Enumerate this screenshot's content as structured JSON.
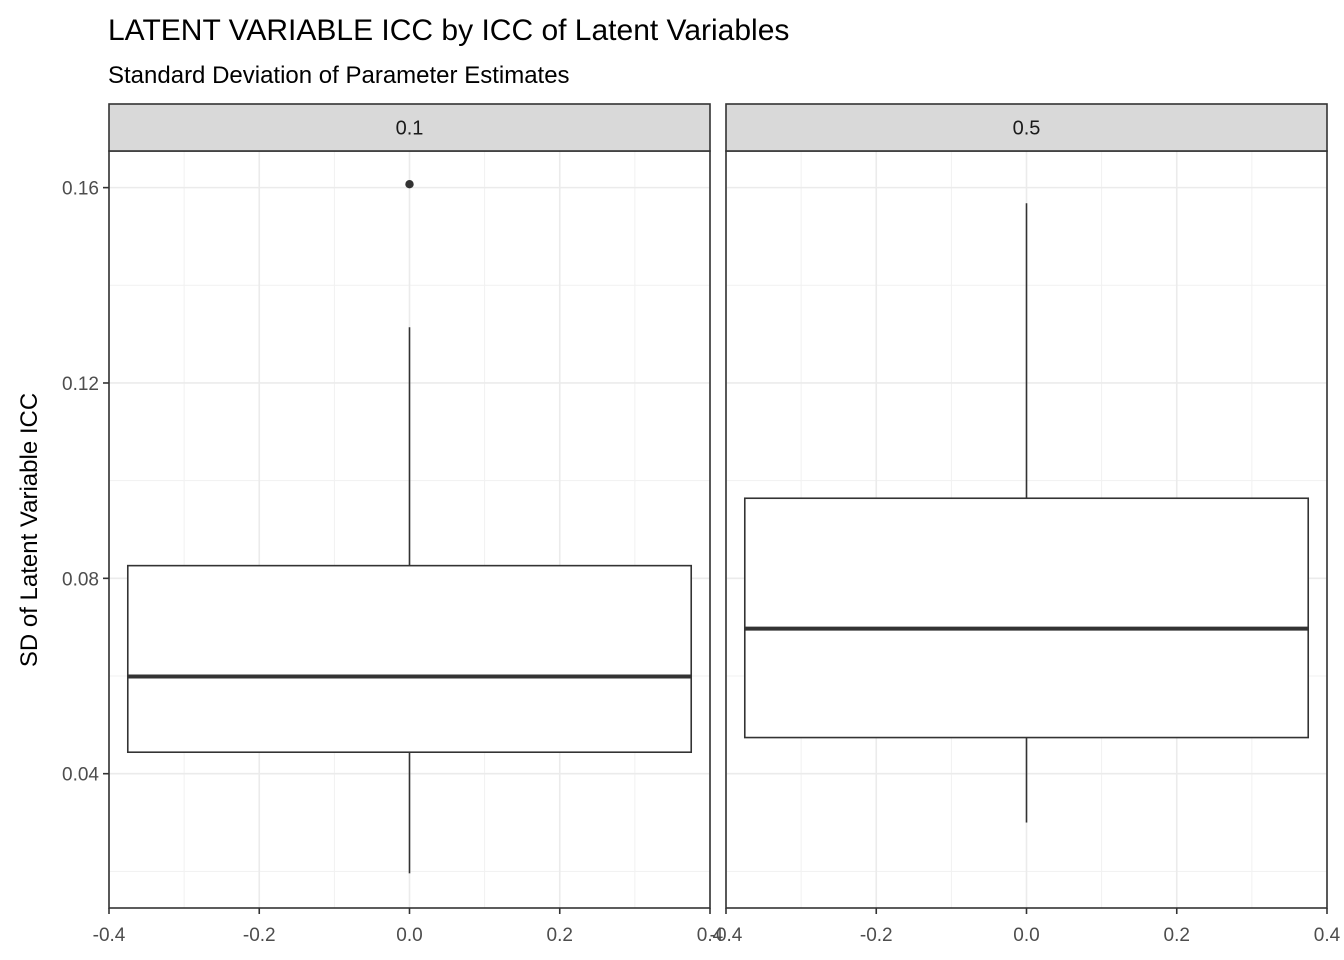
{
  "chart_data": {
    "type": "boxplot",
    "title": "LATENT VARIABLE ICC by ICC of Latent Variables",
    "subtitle": "Standard Deviation of Parameter Estimates",
    "xlabel": "",
    "ylabel": "SD of Latent Variable ICC",
    "xlim": [
      -0.4,
      0.4
    ],
    "ylim": [
      0.0125,
      0.1675
    ],
    "x_ticks": [
      "-0.4",
      "-0.2",
      "0.0",
      "0.2",
      "0.4"
    ],
    "y_ticks": [
      "0.04",
      "0.08",
      "0.12",
      "0.16"
    ],
    "grid": true,
    "facets": [
      {
        "label": "0.1",
        "box": {
          "x": 0.0,
          "width": 0.75,
          "min": 0.0196,
          "q1": 0.0444,
          "median": 0.0599,
          "q3": 0.0826,
          "max": 0.1314
        },
        "outliers": [
          0.1607
        ]
      },
      {
        "label": "0.5",
        "box": {
          "x": 0.0,
          "width": 0.75,
          "min": 0.03,
          "q1": 0.0474,
          "median": 0.0697,
          "q3": 0.0964,
          "max": 0.1568
        },
        "outliers": []
      }
    ]
  }
}
